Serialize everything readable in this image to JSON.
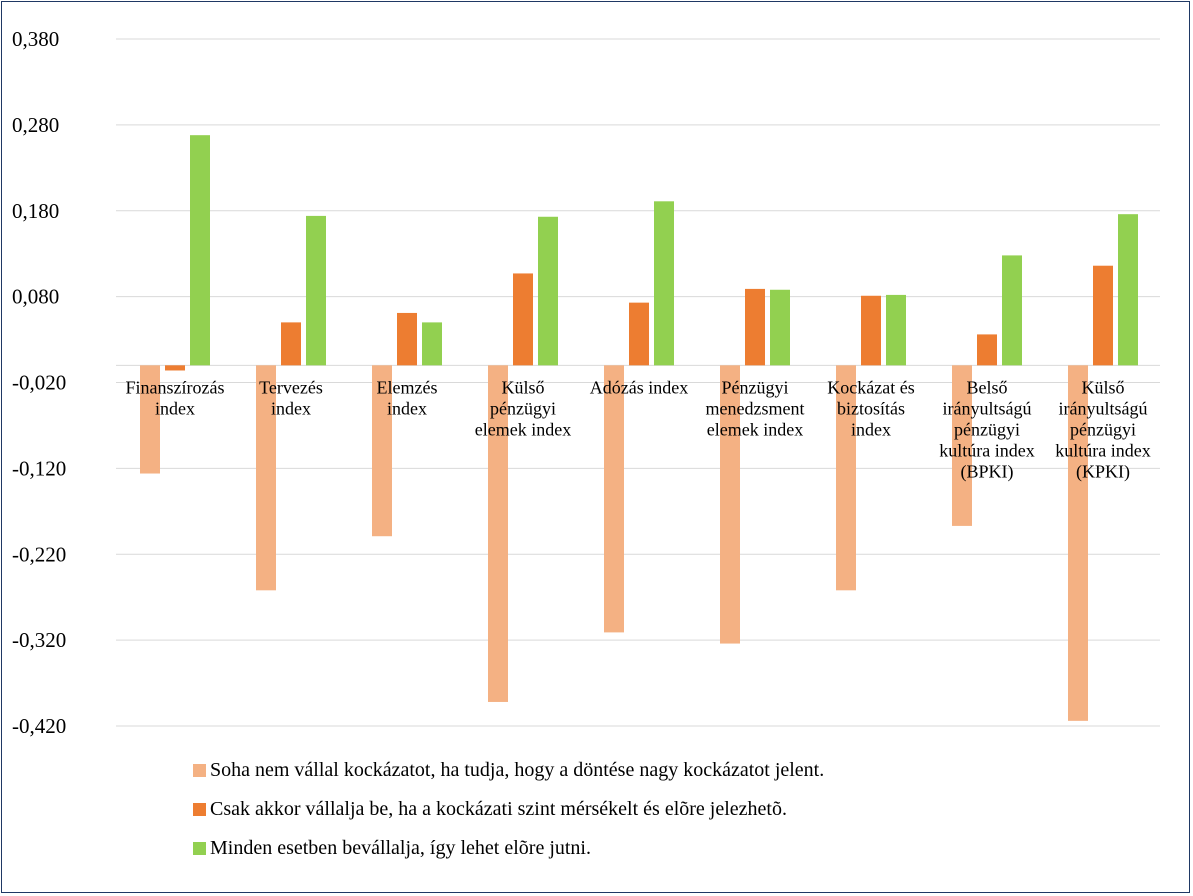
{
  "chart_data": {
    "type": "bar",
    "categories": [
      [
        "Finanszírozás",
        "index"
      ],
      [
        "Tervezés",
        "index"
      ],
      [
        "Elemzés",
        "index"
      ],
      [
        "Külső",
        "pénzügyi",
        "elemek index"
      ],
      [
        "Adózás index"
      ],
      [
        "Pénzügyi",
        "menedzsment",
        "elemek index"
      ],
      [
        "Kockázat és",
        "biztosítás",
        "index"
      ],
      [
        "Belső",
        "irányultságú",
        "pénzügyi",
        "kultúra index",
        "(BPKI)"
      ],
      [
        "Külső",
        "irányultságú",
        "pénzügyi",
        "kultúra index",
        "(KPKI)"
      ]
    ],
    "series": [
      {
        "name": "Soha nem vállal kockázatot, ha tudja, hogy a döntése nagy kockázatot jelent.",
        "color": "#f4b183",
        "values": [
          -0.126,
          -0.262,
          -0.199,
          -0.392,
          -0.311,
          -0.324,
          -0.262,
          -0.187,
          -0.414
        ]
      },
      {
        "name": "Csak akkor vállalja be, ha a kockázati szint mérsékelt és elõre jelezhetõ.",
        "color": "#ed7d31",
        "values": [
          -0.006,
          0.05,
          0.061,
          0.107,
          0.073,
          0.089,
          0.081,
          0.036,
          0.116
        ]
      },
      {
        "name": "Minden esetben bevállalja, így lehet elõre jutni.",
        "color": "#92d050",
        "values": [
          0.268,
          0.174,
          0.05,
          0.173,
          0.191,
          0.088,
          0.082,
          0.128,
          0.176
        ]
      }
    ],
    "yticks": [
      "0,380",
      "0,280",
      "0,180",
      "0,080",
      "-0,020",
      "-0,120",
      "-0,220",
      "-0,320",
      "-0,420"
    ],
    "ylim": [
      -0.42,
      0.38
    ],
    "grid": true,
    "legend_position": "bottom"
  }
}
